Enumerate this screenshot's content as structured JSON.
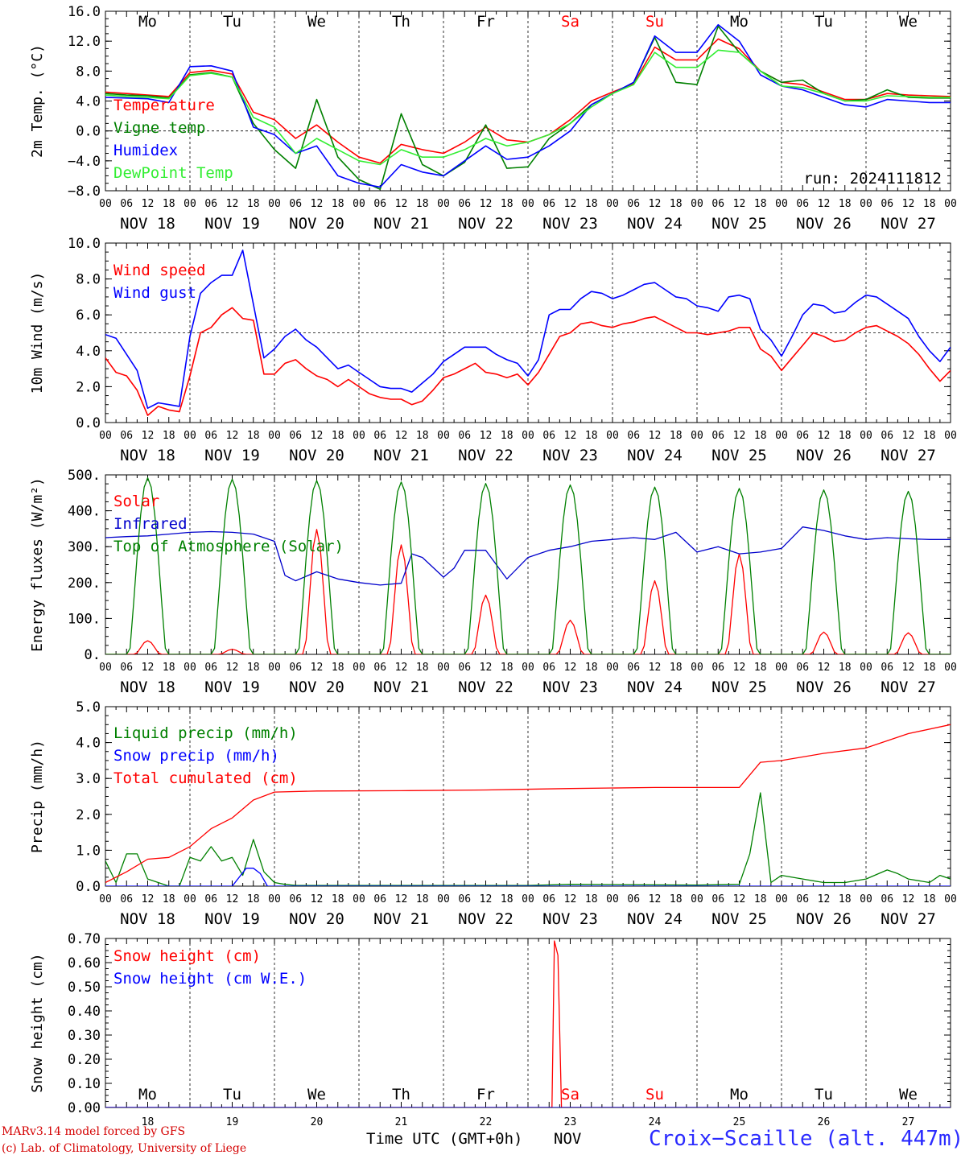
{
  "days_top": [
    "Mo",
    "Tu",
    "We",
    "Th",
    "Fr",
    "Sa",
    "Su",
    "Mo",
    "Tu",
    "We"
  ],
  "weekend_color": "#ff0000",
  "weekend_index": [
    5,
    6
  ],
  "dates": [
    "NOV 18",
    "NOV 19",
    "NOV 20",
    "NOV 21",
    "NOV 22",
    "NOV 23",
    "NOV 24",
    "NOV 25",
    "NOV 26",
    "NOV 27"
  ],
  "hour_ticks": [
    "00",
    "06",
    "12",
    "18"
  ],
  "last_hour": "00",
  "day_numbers": [
    "18",
    "19",
    "20",
    "21",
    "22",
    "23",
    "24",
    "25",
    "26",
    "27"
  ],
  "month_label": "NOV",
  "time_label": "Time UTC (GMT+0h)",
  "credits": [
    "MARv3.14 model forced by GFS",
    "(c) Lab. of Climatology, University of Liege"
  ],
  "station": "Croix−Scaille (alt. 447m)",
  "run": "run: 2024111812",
  "chart_data": [
    {
      "type": "line",
      "ylabel": "2m Temp. (°C)",
      "ylim": [
        -8,
        16
      ],
      "yticks": [
        "−8.0",
        "−4.0",
        "0.0",
        "4.0",
        "8.0",
        "12.0",
        "16.0"
      ],
      "ytick_values": [
        -8,
        -4,
        0,
        4,
        8,
        12,
        16
      ],
      "reference": 0,
      "x_hours": [
        0,
        6,
        12,
        18,
        24,
        30,
        36,
        42,
        48,
        54,
        60,
        66,
        72,
        78,
        84,
        90,
        96,
        102,
        108,
        114,
        120,
        126,
        132,
        138,
        144,
        150,
        156,
        162,
        168,
        174,
        180,
        186,
        192,
        198,
        204,
        210,
        216,
        222,
        228,
        234,
        240
      ],
      "series": [
        {
          "name": "Temperature",
          "color": "#ff0000",
          "values": [
            5.2,
            5.0,
            4.8,
            4.6,
            7.8,
            8.1,
            7.6,
            2.5,
            1.5,
            -1.0,
            0.8,
            -1.5,
            -3.5,
            -4.3,
            -1.8,
            -2.5,
            -3.0,
            -1.5,
            0.5,
            -1.2,
            -1.5,
            -0.5,
            1.5,
            4.0,
            5.2,
            6.3,
            11.2,
            9.5,
            9.5,
            12.3,
            11.0,
            8.0,
            6.5,
            6.2,
            5.2,
            4.2,
            4.2,
            5.0,
            4.8,
            4.7,
            4.6
          ]
        },
        {
          "name": "Vigne temp",
          "color": "#008000",
          "values": [
            5.0,
            4.8,
            4.7,
            4.4,
            7.5,
            7.8,
            7.2,
            1.0,
            -2.5,
            -5.0,
            4.2,
            -3.5,
            -6.5,
            -7.8,
            2.3,
            -4.5,
            -6.0,
            -4.2,
            0.8,
            -5.0,
            -4.8,
            -1.0,
            1.0,
            3.5,
            5.0,
            6.5,
            12.5,
            6.5,
            6.2,
            14.0,
            10.5,
            8.0,
            6.5,
            6.8,
            5.0,
            4.0,
            4.2,
            5.5,
            4.5,
            4.4,
            4.4
          ]
        },
        {
          "name": "Humidex",
          "color": "#0000ff",
          "values": [
            4.5,
            4.4,
            4.3,
            3.8,
            8.6,
            8.7,
            8.0,
            0.5,
            -0.5,
            -3.0,
            -2.0,
            -6.0,
            -7.0,
            -7.5,
            -4.5,
            -5.5,
            -6.0,
            -4.0,
            -2.0,
            -3.8,
            -3.5,
            -2.0,
            0.0,
            3.5,
            5.0,
            6.5,
            12.7,
            10.5,
            10.5,
            14.2,
            12.0,
            7.5,
            6.0,
            5.5,
            4.5,
            3.5,
            3.2,
            4.2,
            4.0,
            3.8,
            3.8
          ]
        },
        {
          "name": "DewPoint Temp",
          "color": "#33ee33",
          "values": [
            4.8,
            4.6,
            4.5,
            4.3,
            7.4,
            7.7,
            7.2,
            1.8,
            0.5,
            -3.0,
            -1.0,
            -2.5,
            -4.0,
            -4.5,
            -2.5,
            -3.5,
            -3.5,
            -2.5,
            -1.0,
            -2.0,
            -1.5,
            -0.5,
            1.0,
            3.2,
            5.0,
            6.2,
            10.5,
            8.5,
            8.5,
            10.8,
            10.5,
            8.0,
            6.0,
            5.8,
            5.0,
            4.0,
            4.0,
            4.7,
            4.6,
            4.5,
            4.5
          ]
        }
      ]
    },
    {
      "type": "line",
      "ylabel": "10m Wind (m/s)",
      "ylim": [
        0,
        10
      ],
      "yticks": [
        "0.0",
        "2.0",
        "4.0",
        "6.0",
        "8.0",
        "10.0"
      ],
      "ytick_values": [
        0,
        2,
        4,
        6,
        8,
        10
      ],
      "reference": 5,
      "x_hours": [
        0,
        3,
        6,
        9,
        12,
        15,
        18,
        21,
        24,
        27,
        30,
        33,
        36,
        39,
        42,
        45,
        48,
        51,
        54,
        57,
        60,
        63,
        66,
        69,
        72,
        75,
        78,
        81,
        84,
        87,
        90,
        93,
        96,
        99,
        102,
        105,
        108,
        111,
        114,
        117,
        120,
        123,
        126,
        129,
        132,
        135,
        138,
        141,
        144,
        147,
        150,
        153,
        156,
        159,
        162,
        165,
        168,
        171,
        174,
        177,
        180,
        183,
        186,
        189,
        192,
        195,
        198,
        201,
        204,
        207,
        210,
        213,
        216,
        219,
        222,
        225,
        228,
        231,
        234,
        237,
        240
      ],
      "series": [
        {
          "name": "Wind speed",
          "color": "#ff0000",
          "values": [
            3.6,
            2.8,
            2.6,
            1.8,
            0.4,
            0.9,
            0.7,
            0.6,
            2.6,
            5.0,
            5.3,
            6.0,
            6.4,
            5.8,
            5.7,
            2.7,
            2.7,
            3.3,
            3.5,
            3.0,
            2.6,
            2.4,
            2.0,
            2.4,
            2.0,
            1.6,
            1.4,
            1.3,
            1.3,
            1.0,
            1.2,
            1.8,
            2.5,
            2.7,
            3.0,
            3.3,
            2.8,
            2.7,
            2.5,
            2.7,
            2.1,
            2.8,
            3.8,
            4.8,
            5.0,
            5.5,
            5.6,
            5.4,
            5.3,
            5.5,
            5.6,
            5.8,
            5.9,
            5.6,
            5.3,
            5.0,
            5.0,
            4.9,
            5.0,
            5.1,
            5.3,
            5.3,
            4.1,
            3.7,
            2.9,
            3.6,
            4.3,
            5.0,
            4.8,
            4.5,
            4.6,
            5.0,
            5.3,
            5.4,
            5.1,
            4.8,
            4.4,
            3.8,
            3.0,
            2.3,
            2.9
          ]
        },
        {
          "name": "Wind gust",
          "color": "#0000ff",
          "values": [
            4.9,
            4.7,
            3.8,
            2.9,
            0.8,
            1.1,
            1.0,
            0.9,
            4.8,
            7.2,
            7.8,
            8.2,
            8.2,
            9.6,
            6.6,
            3.6,
            4.1,
            4.8,
            5.2,
            4.6,
            4.2,
            3.6,
            3.0,
            3.2,
            2.8,
            2.4,
            2.0,
            1.9,
            1.9,
            1.7,
            2.2,
            2.7,
            3.4,
            3.8,
            4.2,
            4.2,
            4.2,
            3.8,
            3.5,
            3.3,
            2.6,
            3.5,
            6.0,
            6.3,
            6.3,
            6.9,
            7.3,
            7.2,
            6.9,
            7.1,
            7.4,
            7.7,
            7.8,
            7.4,
            7.0,
            6.9,
            6.5,
            6.4,
            6.2,
            7.0,
            7.1,
            6.9,
            5.2,
            4.6,
            3.7,
            4.8,
            6.0,
            6.6,
            6.5,
            6.1,
            6.2,
            6.7,
            7.1,
            7.0,
            6.6,
            6.2,
            5.8,
            4.8,
            4.0,
            3.4,
            4.2
          ]
        }
      ]
    },
    {
      "type": "line",
      "ylabel": "Energy fluxes (W/m²)",
      "ylim": [
        0,
        500
      ],
      "yticks": [
        "0.",
        "100.",
        "200.",
        "300.",
        "400.",
        "500."
      ],
      "ytick_values": [
        0,
        100,
        200,
        300,
        400,
        500
      ],
      "series": [
        {
          "name": "Solar",
          "color": "#ff0000",
          "peak_hours": [
            12,
            36,
            60,
            84,
            108,
            132,
            156,
            180,
            204,
            228
          ],
          "peak_values": [
            38,
            14,
            348,
            305,
            165,
            95,
            205,
            280,
            62,
            60
          ]
        },
        {
          "name": "Infrared",
          "color": "#0000cc",
          "x_hours": [
            0,
            6,
            12,
            18,
            24,
            30,
            36,
            42,
            48,
            51,
            54,
            60,
            66,
            72,
            78,
            84,
            87,
            90,
            96,
            99,
            102,
            108,
            114,
            120,
            126,
            132,
            138,
            144,
            150,
            156,
            162,
            168,
            174,
            180,
            186,
            192,
            198,
            204,
            210,
            216,
            222,
            228,
            234,
            240
          ],
          "values": [
            325,
            328,
            330,
            335,
            340,
            342,
            340,
            335,
            315,
            220,
            205,
            230,
            210,
            200,
            193,
            198,
            280,
            270,
            215,
            240,
            290,
            290,
            210,
            270,
            290,
            300,
            315,
            320,
            325,
            320,
            340,
            285,
            300,
            280,
            285,
            295,
            355,
            345,
            330,
            320,
            325,
            322,
            320,
            320
          ]
        },
        {
          "name": "Top of Atmosphere (Solar)",
          "color": "#008000",
          "peak_hours": [
            12,
            36,
            60,
            84,
            108,
            132,
            156,
            180,
            204,
            228
          ],
          "peak_values": [
            492,
            488,
            484,
            480,
            476,
            472,
            466,
            462,
            458,
            454
          ]
        }
      ]
    },
    {
      "type": "line",
      "ylabel": "Precip (mm/h)",
      "ylim": [
        0,
        5
      ],
      "yticks": [
        "0.0",
        "1.0",
        "2.0",
        "3.0",
        "4.0",
        "5.0"
      ],
      "ytick_values": [
        0,
        1,
        2,
        3,
        4,
        5
      ],
      "series": [
        {
          "name": "Liquid precip (mm/h)",
          "color": "#008000",
          "x_hours": [
            0,
            3,
            6,
            9,
            12,
            15,
            18,
            21,
            24,
            27,
            30,
            33,
            36,
            39,
            42,
            45,
            48,
            51,
            54,
            60,
            90,
            96,
            120,
            132,
            168,
            180,
            183,
            186,
            189,
            192,
            198,
            204,
            210,
            216,
            222,
            225,
            228,
            234,
            237,
            240
          ],
          "values": [
            0.7,
            0.1,
            0.9,
            0.9,
            0.2,
            0.1,
            0.0,
            0.0,
            0.8,
            0.7,
            1.1,
            0.7,
            0.8,
            0.3,
            1.3,
            0.4,
            0.1,
            0.05,
            0.02,
            0.02,
            0.02,
            0.02,
            0.02,
            0.05,
            0.03,
            0.05,
            0.9,
            2.6,
            0.1,
            0.3,
            0.2,
            0.1,
            0.1,
            0.2,
            0.45,
            0.35,
            0.2,
            0.1,
            0.3,
            0.2
          ]
        },
        {
          "name": "Snow precip (mm/h)",
          "color": "#0000ff",
          "x_hours": [
            0,
            36,
            40,
            42,
            44,
            46,
            50,
            240
          ],
          "values": [
            0,
            0,
            0.5,
            0.5,
            0.35,
            0.0,
            0,
            0
          ]
        },
        {
          "name": "Total cumulated (cm)",
          "color": "#ff0000",
          "x_hours": [
            0,
            6,
            12,
            18,
            24,
            30,
            36,
            42,
            48,
            60,
            84,
            108,
            132,
            156,
            180,
            186,
            192,
            204,
            216,
            228,
            240
          ],
          "values": [
            0.1,
            0.4,
            0.75,
            0.8,
            1.1,
            1.6,
            1.9,
            2.4,
            2.62,
            2.65,
            2.66,
            2.68,
            2.72,
            2.75,
            2.75,
            3.45,
            3.5,
            3.7,
            3.85,
            4.25,
            4.5
          ]
        }
      ]
    },
    {
      "type": "line",
      "ylabel": "Snow height (cm)",
      "ylim": [
        0,
        0.7
      ],
      "yticks": [
        "0.00",
        "0.10",
        "0.20",
        "0.30",
        "0.40",
        "0.50",
        "0.60",
        "0.70"
      ],
      "ytick_values": [
        0,
        0.1,
        0.2,
        0.3,
        0.4,
        0.5,
        0.6,
        0.7
      ],
      "series": [
        {
          "name": "Snow height (cm)",
          "color": "#ff0000",
          "x_hours": [
            0,
            126.8,
            127.5,
            128.5,
            129.5,
            240
          ],
          "values": [
            0,
            0,
            0.69,
            0.63,
            0,
            0
          ]
        },
        {
          "name": "Snow height (cm W.E.)",
          "color": "#0000ff",
          "x_hours": [
            0,
            240
          ],
          "values": [
            0,
            0
          ]
        }
      ]
    }
  ]
}
